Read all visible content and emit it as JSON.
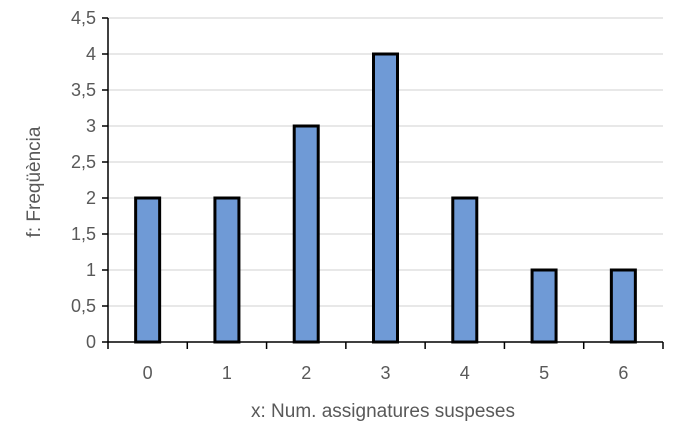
{
  "chart_data": {
    "type": "bar",
    "categories": [
      "0",
      "1",
      "2",
      "3",
      "4",
      "5",
      "6"
    ],
    "values": [
      2,
      2,
      3,
      4,
      2,
      1,
      1
    ],
    "title": "",
    "xlabel": "x: Num. assignatures suspeses",
    "ylabel": "f: Freqüència",
    "ylim": [
      0,
      4.5
    ],
    "y_ticks": [
      "0",
      "0,5",
      "1",
      "1,5",
      "2",
      "2,5",
      "3",
      "3,5",
      "4",
      "4,5"
    ],
    "grid": true,
    "legend": "none",
    "colors": {
      "bar_fill": "#6f9ad6",
      "bar_stroke": "#000000",
      "grid": "#d9d9d9",
      "axis": "#000000",
      "text": "#595959"
    }
  }
}
